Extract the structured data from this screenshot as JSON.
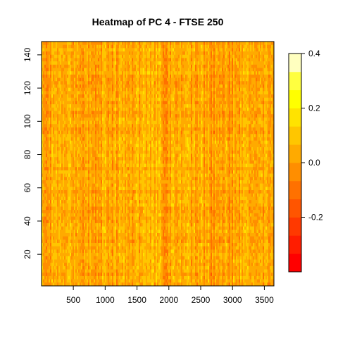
{
  "chart_data": {
    "type": "heatmap",
    "title": "Heatmap of PC 4  - FTSE 250",
    "xlabel": "",
    "ylabel": "",
    "xlim": [
      1,
      3650
    ],
    "ylim": [
      1,
      148
    ],
    "x_ticks": [
      500,
      1000,
      1500,
      2000,
      2500,
      3000,
      3500
    ],
    "y_ticks": [
      20,
      40,
      60,
      80,
      100,
      120,
      140
    ],
    "colorbar": {
      "range": [
        -0.4,
        0.4
      ],
      "ticks": [
        -0.2,
        0.0,
        0.2,
        0.4
      ],
      "tick_labels": [
        "-0.2",
        "0.0",
        "0.2",
        "0.4"
      ],
      "levels": 12,
      "colors": [
        "#ff0000",
        "#ff1d00",
        "#ff3900",
        "#ff5500",
        "#ff7100",
        "#ff8e00",
        "#ffaa00",
        "#ffc600",
        "#ffe300",
        "#ffff00",
        "#ffff40",
        "#ffffbf"
      ]
    },
    "values_note": "dense matrix of loadings, predominantly in range -0.15 to 0.15"
  }
}
